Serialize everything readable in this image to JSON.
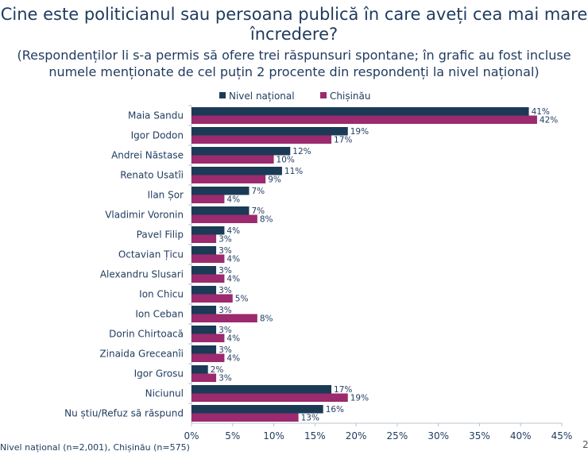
{
  "title": "Cine este politicianul sau persoana publică în care aveți cea mai mare încredere?",
  "subtitle": "(Respondenților li s-a permis să ofere trei răspunsuri spontane; în grafic au fost incluse numele menționate de cel puțin 2 procente din respondenți la nivel național)",
  "footnote": "Nivel național (n=2,001), Chișinău (n=575)",
  "page_number": "2",
  "colors": {
    "national": "#1b3a56",
    "chisinau": "#9b2a6e",
    "axis": "#b8c4d0",
    "text": "#1f3a5f"
  },
  "chart_data": {
    "type": "bar",
    "orientation": "horizontal",
    "categories": [
      "Maia Sandu",
      "Igor Dodon",
      "Andrei Năstase",
      "Renato Usatîi",
      "Ilan Șor",
      "Vladimir Voronin",
      "Pavel Filip",
      "Octavian Țicu",
      "Alexandru Slusari",
      "Ion Chicu",
      "Ion Ceban",
      "Dorin Chirtoacă",
      "Zinaida Greceanîi",
      "Igor Grosu",
      "Niciunul",
      "Nu știu/Refuz să răspund"
    ],
    "series": [
      {
        "name": "Nivel național",
        "values": [
          41,
          19,
          12,
          11,
          7,
          7,
          4,
          3,
          3,
          3,
          3,
          3,
          3,
          2,
          17,
          16
        ],
        "labels": [
          "41%",
          "19%",
          "12%",
          "11%",
          "7%",
          "7%",
          "4%",
          "3%",
          "3%",
          "3%",
          "3%",
          "3%",
          "3%",
          "2%",
          "17%",
          "16%"
        ]
      },
      {
        "name": "Chișinău",
        "values": [
          42,
          17,
          10,
          9,
          4,
          8,
          3,
          4,
          4,
          5,
          8,
          4,
          4,
          3,
          19,
          13
        ],
        "labels": [
          "42%",
          "17%",
          "10%",
          "9%",
          "4%",
          "8%",
          "3%",
          "4%",
          "4%",
          "5%",
          "8%",
          "4%",
          "4%",
          "3%",
          "19%",
          "13%"
        ]
      }
    ],
    "x_ticks": [
      "0%",
      "5%",
      "10%",
      "15%",
      "20%",
      "25%",
      "30%",
      "35%",
      "40%",
      "45%"
    ],
    "xlim": [
      0,
      45
    ],
    "grid": false,
    "legend_position": "top"
  }
}
